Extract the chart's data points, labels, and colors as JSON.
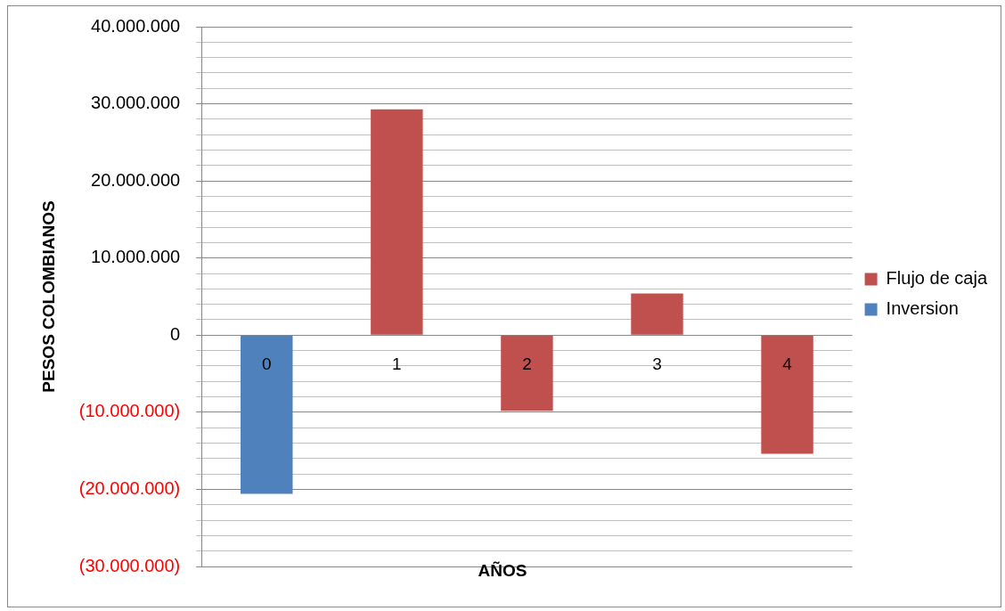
{
  "chart_data": {
    "type": "bar",
    "categories": [
      "0",
      "1",
      "2",
      "3",
      "4"
    ],
    "xlabel": "AÑOS",
    "ylabel": "PESOS COLOMBIANOS",
    "series": [
      {
        "name": "Flujo de caja",
        "color": "#c0504d",
        "values": [
          null,
          29300000,
          -9800000,
          5400000,
          -15400000
        ]
      },
      {
        "name": "Inversion",
        "color": "#4f81bd",
        "values": [
          -20600000,
          null,
          null,
          null,
          null
        ]
      }
    ],
    "ylim": [
      -30000000,
      40000000
    ],
    "yticks": [
      {
        "value": -30000000,
        "label": "(30.000.000)"
      },
      {
        "value": -28000000,
        "label": null
      },
      {
        "value": -26000000,
        "label": null
      },
      {
        "value": -24000000,
        "label": null
      },
      {
        "value": -22000000,
        "label": null
      },
      {
        "value": -20000000,
        "label": "(20.000.000)"
      },
      {
        "value": -18000000,
        "label": null
      },
      {
        "value": -16000000,
        "label": null
      },
      {
        "value": -14000000,
        "label": null
      },
      {
        "value": -12000000,
        "label": null
      },
      {
        "value": -10000000,
        "label": "(10.000.000)"
      },
      {
        "value": -8000000,
        "label": null
      },
      {
        "value": -6000000,
        "label": null
      },
      {
        "value": -4000000,
        "label": null
      },
      {
        "value": -2000000,
        "label": null
      },
      {
        "value": 0,
        "label": "0"
      },
      {
        "value": 2000000,
        "label": null
      },
      {
        "value": 4000000,
        "label": null
      },
      {
        "value": 6000000,
        "label": null
      },
      {
        "value": 8000000,
        "label": null
      },
      {
        "value": 10000000,
        "label": "10.000.000"
      },
      {
        "value": 12000000,
        "label": null
      },
      {
        "value": 14000000,
        "label": null
      },
      {
        "value": 16000000,
        "label": null
      },
      {
        "value": 18000000,
        "label": null
      },
      {
        "value": 20000000,
        "label": "20.000.000"
      },
      {
        "value": 22000000,
        "label": null
      },
      {
        "value": 24000000,
        "label": null
      },
      {
        "value": 26000000,
        "label": null
      },
      {
        "value": 28000000,
        "label": null
      },
      {
        "value": 30000000,
        "label": "30.000.000"
      },
      {
        "value": 32000000,
        "label": null
      },
      {
        "value": 34000000,
        "label": null
      },
      {
        "value": 36000000,
        "label": null
      },
      {
        "value": 38000000,
        "label": null
      },
      {
        "value": 40000000,
        "label": "40.000.000"
      }
    ],
    "grid": "y",
    "legend": "right"
  }
}
